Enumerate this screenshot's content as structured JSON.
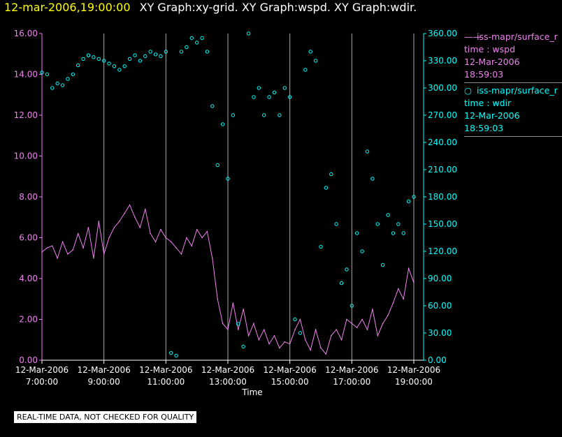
{
  "header": {
    "timestamp": "12-mar-2006,19:00:00",
    "graphs": "XY Graph:xy-grid.  XY Graph:wspd.  XY Graph:wdir."
  },
  "legend": {
    "series1": {
      "symbol": "——",
      "name": "iss-mapr/surface_r",
      "line2": "time : wspd",
      "line3": "12-Mar-2006",
      "line4": "18:59:03"
    },
    "series2": {
      "symbol": "○",
      "name": "iss-mapr/surface_r",
      "line2": "time : wdir",
      "line3": "12-Mar-2006",
      "line4": "18:59:03"
    }
  },
  "notice": "REAL-TIME DATA, NOT CHECKED FOR QUALITY",
  "colors": {
    "wspd": "#ee82ee",
    "wdir": "#00ffff",
    "grid": "#aaaaaa",
    "stamp": "#ffff00",
    "axis_text": "#ffffff"
  },
  "chart_data": {
    "type": "line",
    "xlabel": "Time",
    "x_ticks": [
      {
        "date": "12-Mar-2006",
        "time": "7:00:00"
      },
      {
        "date": "12-Mar-2006",
        "time": "9:00:00"
      },
      {
        "date": "12-Mar-2006",
        "time": "11:00:00"
      },
      {
        "date": "12-Mar-2006",
        "time": "13:00:00"
      },
      {
        "date": "12-Mar-2006",
        "time": "15:00:00"
      },
      {
        "date": "12-Mar-2006",
        "time": "17:00:00"
      },
      {
        "date": "12-Mar-2006",
        "time": "19:00:00"
      }
    ],
    "xlim": [
      "12-Mar-2006 07:00:00",
      "12-Mar-2006 19:00:00"
    ],
    "y_left": {
      "ticks": [
        "0.00",
        "2.00",
        "4.00",
        "6.00",
        "8.00",
        "10.00",
        "12.00",
        "14.00",
        "16.00"
      ],
      "ylim": [
        0,
        16
      ]
    },
    "y_right": {
      "ticks": [
        "0.00",
        "30.00",
        "60.00",
        "90.00",
        "120.00",
        "150.00",
        "180.00",
        "210.00",
        "240.00",
        "270.00",
        "300.00",
        "330.00",
        "360.00"
      ],
      "ylim": [
        0,
        360
      ]
    },
    "grid": "vertical lines at hour ticks",
    "series": [
      {
        "name": "wspd",
        "style": "line",
        "axis": "left",
        "points": [
          [
            "07:00",
            5.3
          ],
          [
            "07:10",
            5.5
          ],
          [
            "07:20",
            5.6
          ],
          [
            "07:30",
            5.0
          ],
          [
            "07:40",
            5.8
          ],
          [
            "07:50",
            5.2
          ],
          [
            "08:00",
            5.4
          ],
          [
            "08:10",
            6.2
          ],
          [
            "08:20",
            5.5
          ],
          [
            "08:30",
            6.5
          ],
          [
            "08:40",
            5.0
          ],
          [
            "08:50",
            6.8
          ],
          [
            "09:00",
            5.2
          ],
          [
            "09:10",
            6.0
          ],
          [
            "09:20",
            6.5
          ],
          [
            "09:30",
            6.8
          ],
          [
            "09:40",
            7.2
          ],
          [
            "09:50",
            7.6
          ],
          [
            "10:00",
            7.0
          ],
          [
            "10:10",
            6.5
          ],
          [
            "10:20",
            7.4
          ],
          [
            "10:30",
            6.2
          ],
          [
            "10:40",
            5.8
          ],
          [
            "10:50",
            6.4
          ],
          [
            "11:00",
            6.0
          ],
          [
            "11:10",
            5.8
          ],
          [
            "11:20",
            5.5
          ],
          [
            "11:30",
            5.2
          ],
          [
            "11:40",
            6.0
          ],
          [
            "11:50",
            5.6
          ],
          [
            "12:00",
            6.4
          ],
          [
            "12:10",
            6.0
          ],
          [
            "12:20",
            6.3
          ],
          [
            "12:30",
            5.0
          ],
          [
            "12:40",
            3.0
          ],
          [
            "12:50",
            1.8
          ],
          [
            "13:00",
            1.5
          ],
          [
            "13:10",
            2.8
          ],
          [
            "13:20",
            1.5
          ],
          [
            "13:30",
            2.5
          ],
          [
            "13:40",
            1.2
          ],
          [
            "13:50",
            1.8
          ],
          [
            "14:00",
            1.0
          ],
          [
            "14:10",
            1.5
          ],
          [
            "14:20",
            0.8
          ],
          [
            "14:30",
            1.2
          ],
          [
            "14:40",
            0.6
          ],
          [
            "14:50",
            0.9
          ],
          [
            "15:00",
            0.8
          ],
          [
            "15:10",
            1.5
          ],
          [
            "15:20",
            2.0
          ],
          [
            "15:30",
            1.0
          ],
          [
            "15:40",
            0.5
          ],
          [
            "15:50",
            1.5
          ],
          [
            "16:00",
            0.6
          ],
          [
            "16:10",
            0.3
          ],
          [
            "16:20",
            1.2
          ],
          [
            "16:30",
            1.5
          ],
          [
            "16:40",
            1.0
          ],
          [
            "16:50",
            2.0
          ],
          [
            "17:00",
            1.8
          ],
          [
            "17:10",
            1.6
          ],
          [
            "17:20",
            2.0
          ],
          [
            "17:30",
            1.5
          ],
          [
            "17:40",
            2.5
          ],
          [
            "17:50",
            1.2
          ],
          [
            "18:00",
            1.8
          ],
          [
            "18:10",
            2.2
          ],
          [
            "18:20",
            2.8
          ],
          [
            "18:30",
            3.5
          ],
          [
            "18:40",
            3.0
          ],
          [
            "18:50",
            4.5
          ],
          [
            "19:00",
            3.8
          ]
        ]
      },
      {
        "name": "wdir",
        "style": "markers",
        "axis": "right",
        "points": [
          [
            "07:00",
            317
          ],
          [
            "07:10",
            315
          ],
          [
            "07:20",
            300
          ],
          [
            "07:30",
            305
          ],
          [
            "07:40",
            303
          ],
          [
            "07:50",
            310
          ],
          [
            "08:00",
            315
          ],
          [
            "08:10",
            325
          ],
          [
            "08:20",
            332
          ],
          [
            "08:30",
            336
          ],
          [
            "08:40",
            334
          ],
          [
            "08:50",
            332
          ],
          [
            "09:00",
            330
          ],
          [
            "09:10",
            327
          ],
          [
            "09:20",
            324
          ],
          [
            "09:30",
            320
          ],
          [
            "09:40",
            324
          ],
          [
            "09:50",
            332
          ],
          [
            "10:00",
            336
          ],
          [
            "10:10",
            330
          ],
          [
            "10:20",
            335
          ],
          [
            "10:30",
            340
          ],
          [
            "10:40",
            337
          ],
          [
            "10:50",
            335
          ],
          [
            "11:00",
            340
          ],
          [
            "11:10",
            8
          ],
          [
            "11:20",
            5
          ],
          [
            "11:30",
            340
          ],
          [
            "11:40",
            345
          ],
          [
            "11:50",
            355
          ],
          [
            "12:00",
            350
          ],
          [
            "12:10",
            355
          ],
          [
            "12:20",
            340
          ],
          [
            "12:30",
            280
          ],
          [
            "12:40",
            215
          ],
          [
            "12:50",
            260
          ],
          [
            "13:00",
            200
          ],
          [
            "13:10",
            270
          ],
          [
            "13:20",
            40
          ],
          [
            "13:30",
            15
          ],
          [
            "13:40",
            360
          ],
          [
            "13:50",
            290
          ],
          [
            "14:00",
            300
          ],
          [
            "14:10",
            270
          ],
          [
            "14:20",
            290
          ],
          [
            "14:30",
            295
          ],
          [
            "14:40",
            270
          ],
          [
            "14:50",
            300
          ],
          [
            "15:00",
            290
          ],
          [
            "15:10",
            45
          ],
          [
            "15:20",
            30
          ],
          [
            "15:30",
            320
          ],
          [
            "15:40",
            340
          ],
          [
            "15:50",
            330
          ],
          [
            "16:00",
            125
          ],
          [
            "16:10",
            190
          ],
          [
            "16:20",
            205
          ],
          [
            "16:30",
            150
          ],
          [
            "16:40",
            85
          ],
          [
            "16:50",
            100
          ],
          [
            "17:00",
            60
          ],
          [
            "17:10",
            140
          ],
          [
            "17:20",
            120
          ],
          [
            "17:30",
            230
          ],
          [
            "17:40",
            200
          ],
          [
            "17:50",
            150
          ],
          [
            "18:00",
            105
          ],
          [
            "18:10",
            160
          ],
          [
            "18:20",
            140
          ],
          [
            "18:30",
            150
          ],
          [
            "18:40",
            140
          ],
          [
            "18:50",
            175
          ],
          [
            "19:00",
            180
          ]
        ]
      }
    ]
  }
}
